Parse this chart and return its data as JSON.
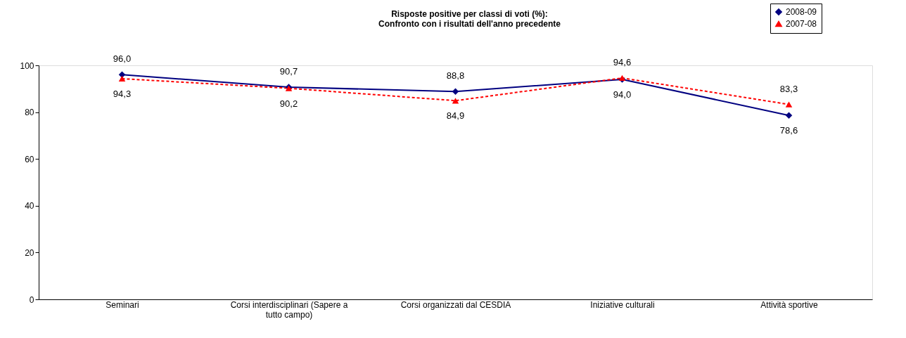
{
  "chart_data": {
    "type": "line",
    "title": "Risposte positive per classi di voti (%):\nConfronto con i risultati dell'anno precedente",
    "categories": [
      "Seminari",
      "Corsi interdisciplinari (Sapere a tutto campo)",
      "Corsi organizzati dal CESDIA",
      "Iniziative culturali",
      "Attività sportive"
    ],
    "series": [
      {
        "name": "2008-09",
        "color": "#000080",
        "marker": "diamond",
        "line_style": "solid",
        "values": [
          96.0,
          90.7,
          88.8,
          94.0,
          78.6
        ],
        "value_labels": [
          "96,0",
          "90,7",
          "88,8",
          "94,0",
          "78,6"
        ]
      },
      {
        "name": "2007-08",
        "color": "#ff0000",
        "marker": "triangle",
        "line_style": "dashed",
        "values": [
          94.3,
          90.2,
          84.9,
          94.6,
          83.3
        ],
        "value_labels": [
          "94,3",
          "90,2",
          "84,9",
          "94,6",
          "83,3"
        ]
      }
    ],
    "ylim": [
      0,
      100
    ],
    "yticks": [
      0,
      20,
      40,
      60,
      80,
      100
    ],
    "grid": false,
    "legend": "top right"
  }
}
